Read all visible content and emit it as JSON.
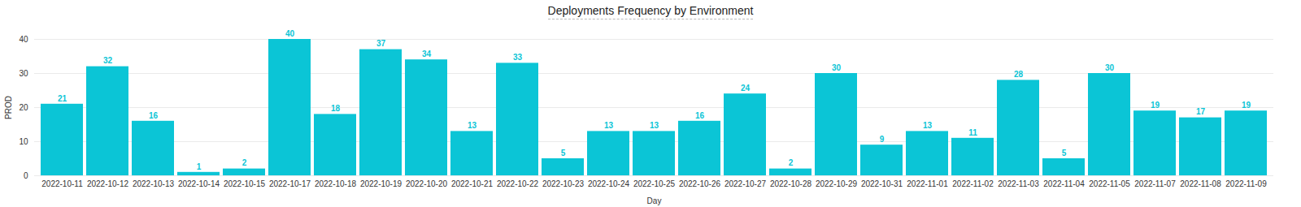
{
  "chart_data": {
    "type": "bar",
    "title": "Deployments Frequency by Environment",
    "x_label": "Day",
    "y_label": "PROD",
    "categories": [
      "2022-10-11",
      "2022-10-12",
      "2022-10-13",
      "2022-10-14",
      "2022-10-15",
      "2022-10-17",
      "2022-10-18",
      "2022-10-19",
      "2022-10-20",
      "2022-10-21",
      "2022-10-22",
      "2022-10-23",
      "2022-10-24",
      "2022-10-25",
      "2022-10-26",
      "2022-10-27",
      "2022-10-28",
      "2022-10-29",
      "2022-10-31",
      "2022-11-01",
      "2022-11-02",
      "2022-11-03",
      "2022-11-04",
      "2022-11-05",
      "2022-11-07",
      "2022-11-08",
      "2022-11-09"
    ],
    "values": [
      21,
      32,
      16,
      1,
      2,
      40,
      18,
      37,
      34,
      13,
      33,
      5,
      13,
      13,
      16,
      24,
      2,
      30,
      9,
      13,
      11,
      28,
      5,
      30,
      19,
      17,
      19
    ],
    "color": "#0bc5d6",
    "ylim": [
      0,
      40
    ],
    "yticks": [
      0,
      10,
      20,
      30,
      40
    ],
    "grid": true,
    "data_labels": true
  }
}
